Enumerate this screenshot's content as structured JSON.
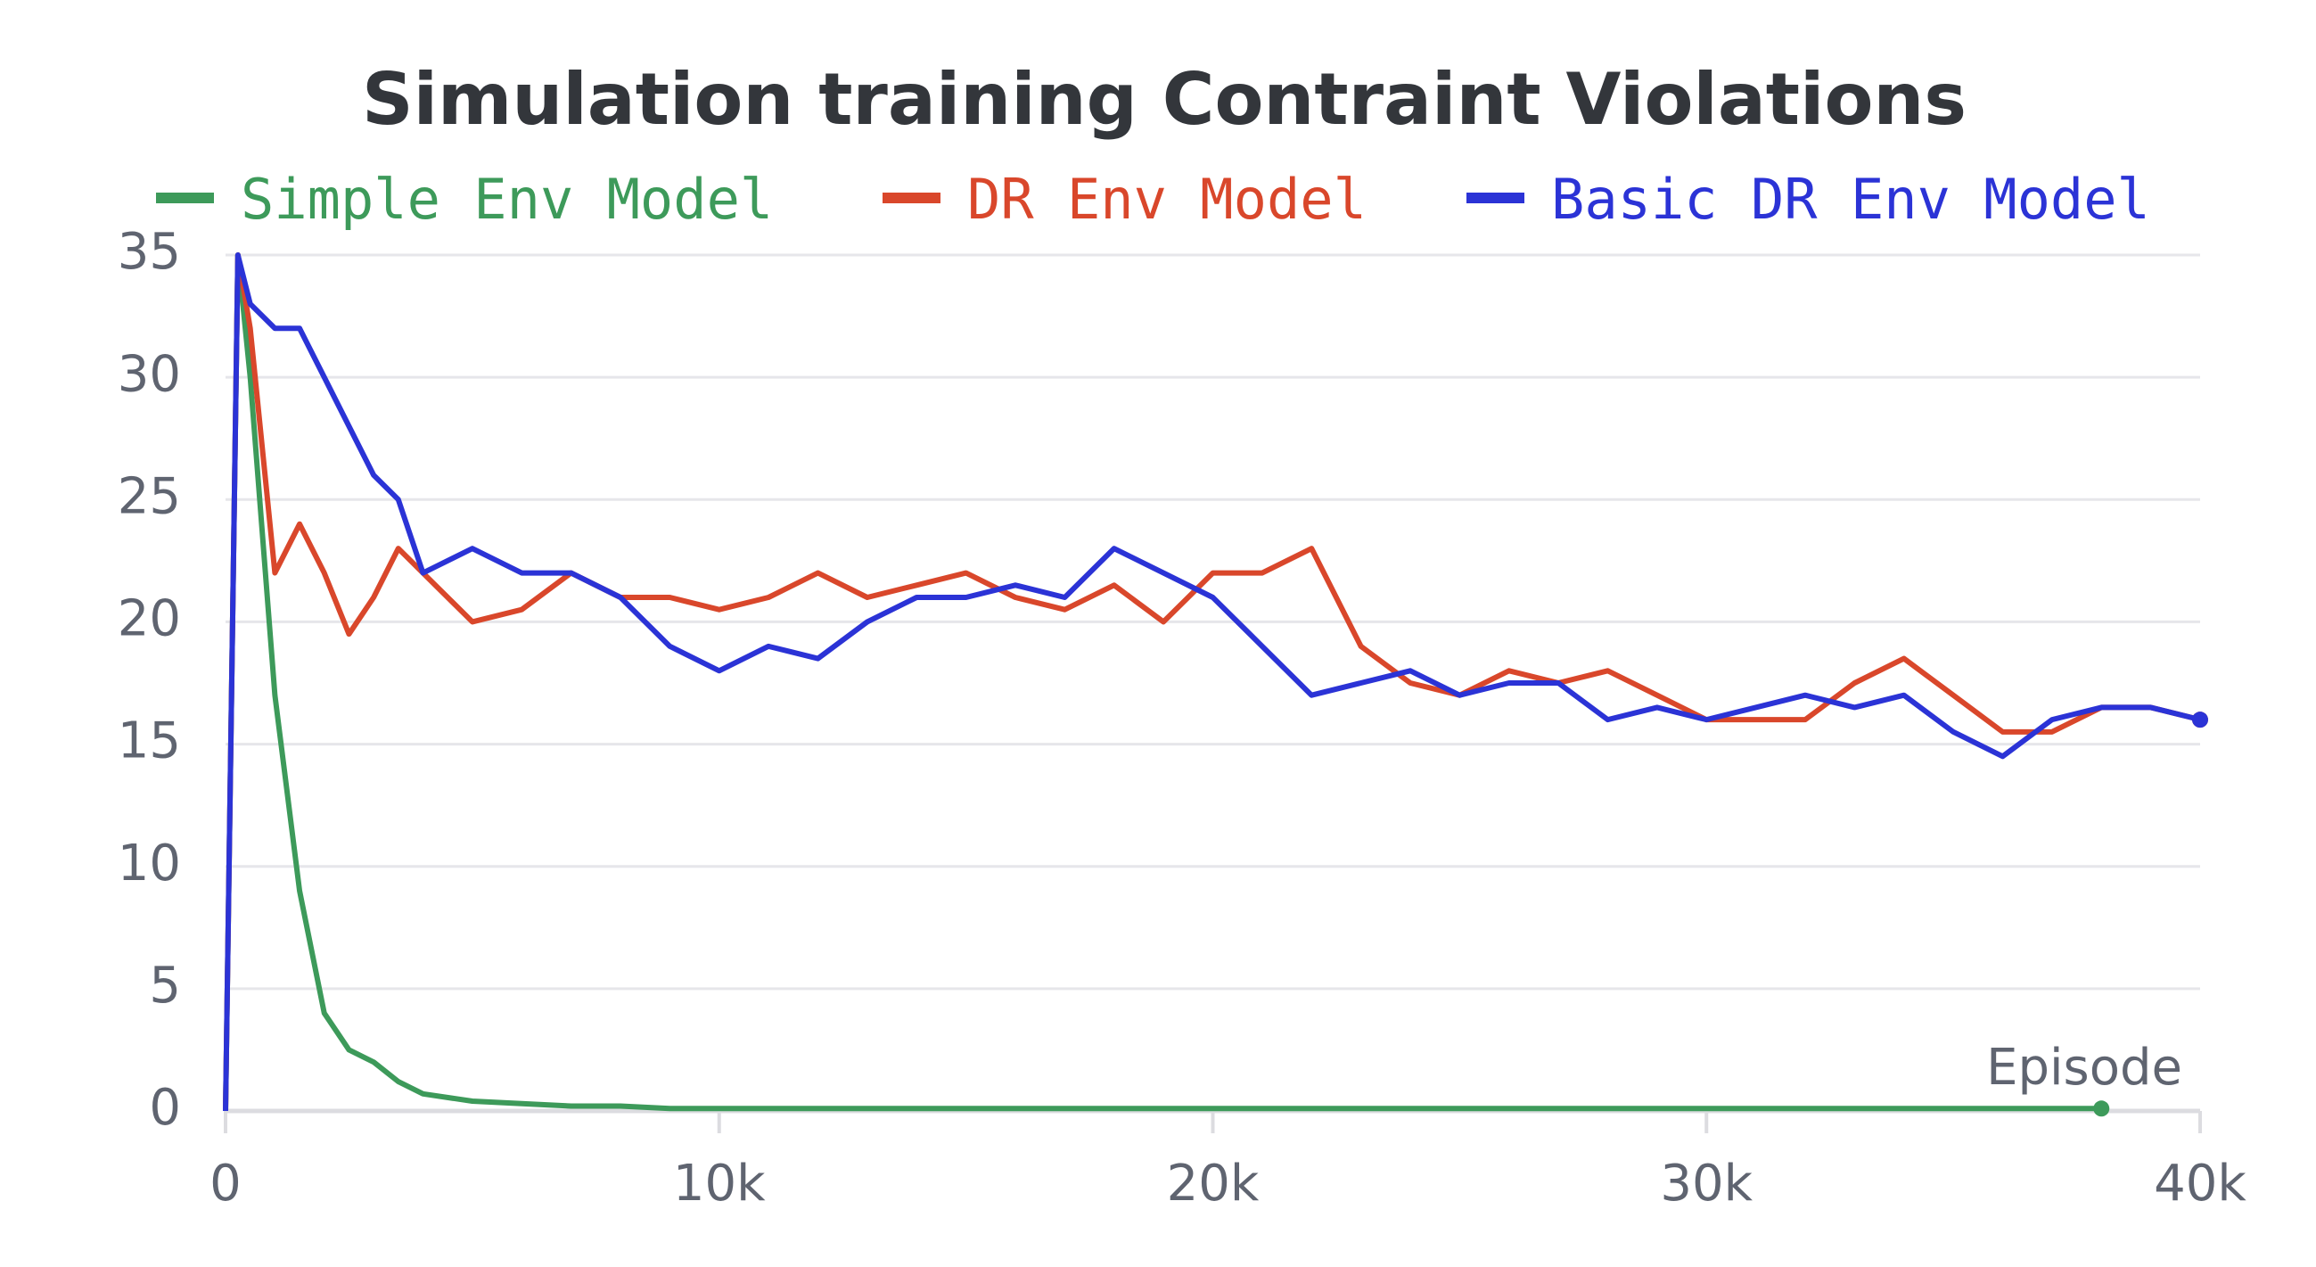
{
  "chart_data": {
    "type": "line",
    "title": "Simulation training Contraint Violations",
    "x_label": "Episode",
    "x": [
      0,
      250,
      500,
      1000,
      1500,
      2000,
      2500,
      3000,
      3500,
      4000,
      5000,
      6000,
      7000,
      8000,
      9000,
      10000,
      11000,
      12000,
      13000,
      14000,
      15000,
      16000,
      17000,
      18000,
      19000,
      20000,
      21000,
      22000,
      23000,
      24000,
      25000,
      26000,
      27000,
      28000,
      29000,
      30000,
      31000,
      32000,
      33000,
      34000,
      35000,
      36000,
      37000,
      38000,
      39000,
      40000
    ],
    "series": [
      {
        "name": "Simple Env Model",
        "color": "#3d9a5a",
        "values": [
          0,
          35,
          30,
          17,
          9,
          4,
          2.5,
          2,
          1.2,
          0.7,
          0.4,
          0.3,
          0.2,
          0.2,
          0.1,
          0.1,
          0.1,
          0.1,
          0.1,
          0.1,
          0.1,
          0.1,
          0.1,
          0.1,
          0.1,
          0.1,
          0.1,
          0.1,
          0.1,
          0.1,
          0.1,
          0.1,
          0.1,
          0.1,
          0.1,
          0.1,
          0.1,
          0.1,
          0.1,
          0.1,
          0.1,
          0.1,
          0.1,
          0.1,
          null,
          null
        ]
      },
      {
        "name": "DR Env Model",
        "color": "#d9472b",
        "values": [
          0,
          35,
          32,
          22,
          24,
          22,
          19.5,
          21,
          23,
          22,
          20,
          20.5,
          22,
          21,
          21,
          20.5,
          21,
          22,
          21,
          21.5,
          22,
          21,
          20.5,
          21.5,
          20,
          22,
          22,
          23,
          19,
          17.5,
          17,
          18,
          17.5,
          18,
          17,
          16,
          16,
          16,
          17.5,
          18.5,
          17,
          15.5,
          15.5,
          16.5,
          16.5,
          16
        ]
      },
      {
        "name": "Basic DR Env Model",
        "color": "#2b33d6",
        "values": [
          0,
          35,
          33,
          32,
          32,
          30,
          28,
          26,
          25,
          22,
          23,
          22,
          22,
          21,
          19,
          18,
          19,
          18.5,
          20,
          21,
          21,
          21.5,
          21,
          23,
          22,
          21,
          19,
          17,
          17.5,
          18,
          17,
          17.5,
          17.5,
          16,
          16.5,
          16,
          16.5,
          17,
          16.5,
          17,
          15.5,
          14.5,
          16,
          16.5,
          16.5,
          16
        ]
      }
    ],
    "xlim": [
      0,
      40000
    ],
    "xticks": [
      0,
      {
        "value": 10000,
        "label": "10k"
      },
      {
        "value": 20000,
        "label": "20k"
      },
      {
        "value": 30000,
        "label": "30k"
      },
      {
        "value": 40000,
        "label": "40k"
      }
    ],
    "ylim": [
      0,
      35
    ],
    "yticks": [
      0,
      5,
      10,
      15,
      20,
      25,
      30,
      35
    ],
    "grid": true
  }
}
